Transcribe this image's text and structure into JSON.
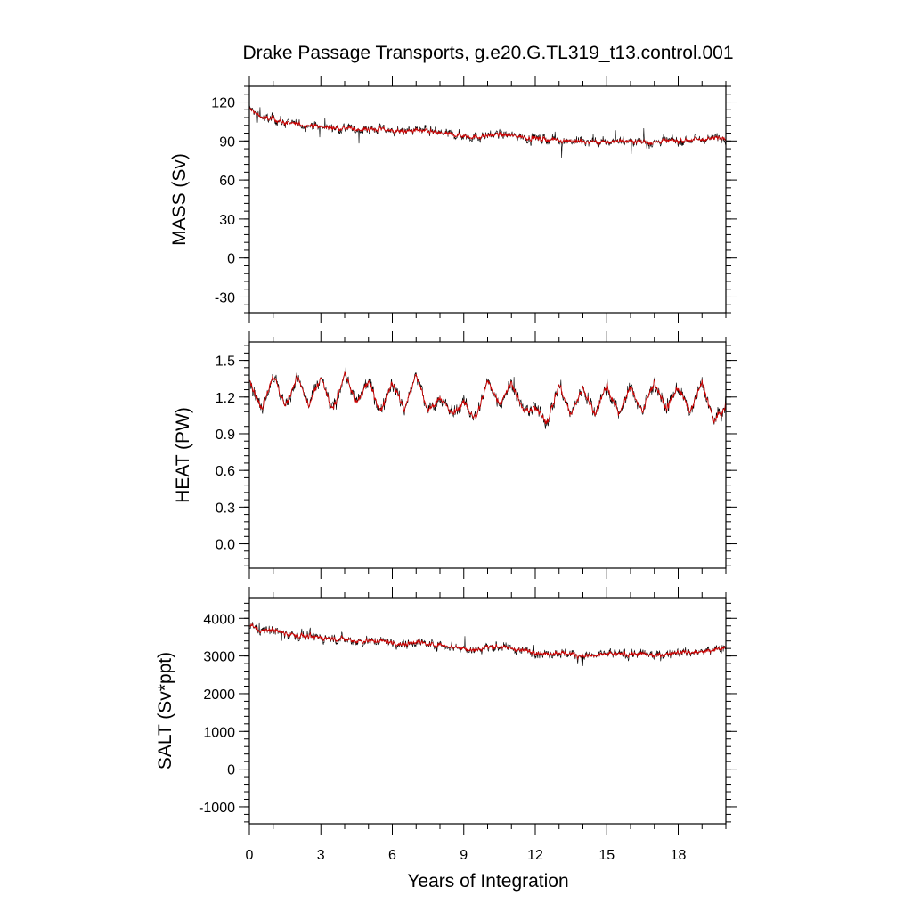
{
  "title": "Drake Passage Transports, g.e20.G.TL319_t13.control.001",
  "colors": {
    "raw_series": "#000000",
    "smoothed_series": "#cc0000",
    "frame": "#000000"
  },
  "chart_data": [
    {
      "type": "line",
      "ylabel": "MASS (Sv)",
      "xlabel": "",
      "xlim": [
        0,
        20
      ],
      "ylim": [
        -42,
        132
      ],
      "yticks": [
        -30,
        0,
        30,
        60,
        90,
        120
      ],
      "ytick_labels": [
        "-30",
        "0",
        "30",
        "60",
        "90",
        "120"
      ],
      "x": [
        0,
        0.5,
        1,
        1.5,
        2,
        2.5,
        3,
        3.5,
        4,
        4.5,
        5,
        5.5,
        6,
        6.5,
        7,
        7.5,
        8,
        8.5,
        9,
        9.5,
        10,
        10.5,
        11,
        11.5,
        12,
        12.5,
        13,
        13.5,
        14,
        14.5,
        15,
        15.5,
        16,
        16.5,
        17,
        17.5,
        18,
        18.5,
        19,
        19.5,
        20
      ],
      "series": [
        {
          "values": [
            115,
            108,
            107,
            104,
            103,
            102,
            101,
            100,
            100,
            99,
            99,
            99,
            98,
            97,
            98,
            97,
            96,
            95,
            94,
            93,
            94,
            95,
            94,
            93,
            92,
            91,
            91,
            90,
            89,
            89,
            89,
            90,
            90,
            89,
            89,
            90,
            90,
            91,
            91,
            92,
            93
          ]
        }
      ]
    },
    {
      "type": "line",
      "ylabel": "HEAT (PW)",
      "xlabel": "",
      "xlim": [
        0,
        20
      ],
      "ylim": [
        -0.2,
        1.65
      ],
      "yticks": [
        0.0,
        0.3,
        0.6,
        0.9,
        1.2,
        1.5
      ],
      "ytick_labels": [
        "0.0",
        "0.3",
        "0.6",
        "0.9",
        "1.2",
        "1.5"
      ],
      "x": [
        0,
        0.5,
        1,
        1.5,
        2,
        2.5,
        3,
        3.5,
        4,
        4.5,
        5,
        5.5,
        6,
        6.5,
        7,
        7.5,
        8,
        8.5,
        9,
        9.5,
        10,
        10.5,
        11,
        11.5,
        12,
        12.5,
        13,
        13.5,
        14,
        14.5,
        15,
        15.5,
        16,
        16.5,
        17,
        17.5,
        18,
        18.5,
        19,
        19.5,
        20
      ],
      "series": [
        {
          "values": [
            1.35,
            1.1,
            1.38,
            1.12,
            1.37,
            1.12,
            1.36,
            1.08,
            1.4,
            1.14,
            1.33,
            1.08,
            1.32,
            1.1,
            1.38,
            1.08,
            1.2,
            1.06,
            1.15,
            1.02,
            1.33,
            1.15,
            1.32,
            1.08,
            1.1,
            1.0,
            1.3,
            1.05,
            1.28,
            1.05,
            1.3,
            1.06,
            1.28,
            1.08,
            1.33,
            1.1,
            1.28,
            1.08,
            1.32,
            1.0,
            1.12
          ]
        }
      ]
    },
    {
      "type": "line",
      "ylabel": "SALT (Sv*ppt)",
      "xlabel": "Years of Integration",
      "xlim": [
        0,
        20
      ],
      "ylim": [
        -1450,
        4550
      ],
      "yticks": [
        -1000,
        0,
        1000,
        2000,
        3000,
        4000
      ],
      "ytick_labels": [
        "-1000",
        "0",
        "1000",
        "2000",
        "3000",
        "4000"
      ],
      "xticks": [
        0,
        3,
        6,
        9,
        12,
        15,
        18
      ],
      "xtick_labels": [
        "0",
        "3",
        "6",
        "9",
        "12",
        "15",
        "18"
      ],
      "x": [
        0,
        0.5,
        1,
        1.5,
        2,
        2.5,
        3,
        3.5,
        4,
        4.5,
        5,
        5.5,
        6,
        6.5,
        7,
        7.5,
        8,
        8.5,
        9,
        9.5,
        10,
        10.5,
        11,
        11.5,
        12,
        12.5,
        13,
        13.5,
        14,
        14.5,
        15,
        15.5,
        16,
        16.5,
        17,
        17.5,
        18,
        18.5,
        19,
        19.5,
        20
      ],
      "series": [
        {
          "values": [
            3850,
            3650,
            3700,
            3600,
            3550,
            3500,
            3500,
            3450,
            3450,
            3400,
            3400,
            3400,
            3350,
            3300,
            3400,
            3300,
            3300,
            3250,
            3200,
            3150,
            3250,
            3250,
            3200,
            3150,
            3100,
            3050,
            3100,
            3050,
            3000,
            3000,
            3050,
            3050,
            3050,
            3050,
            3000,
            3050,
            3100,
            3100,
            3100,
            3150,
            3250
          ]
        }
      ]
    }
  ]
}
